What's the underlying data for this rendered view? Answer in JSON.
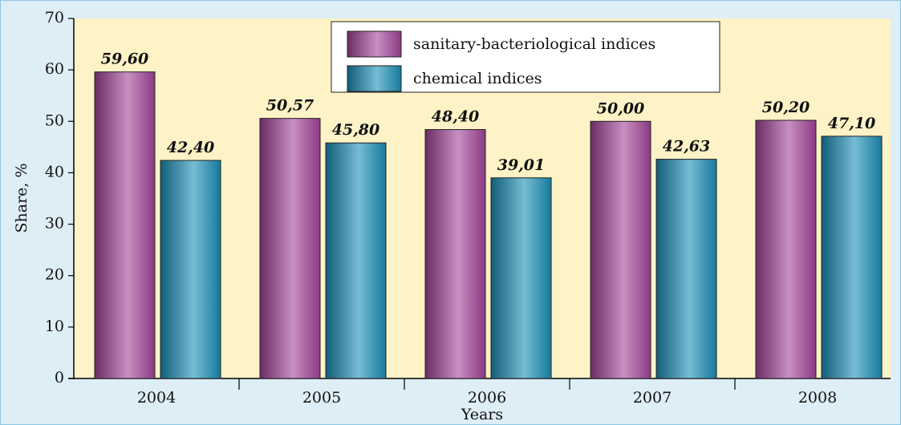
{
  "chart_data": {
    "type": "bar",
    "x_label": "Years",
    "y_label": "Share, %",
    "categories": [
      "2004",
      "2005",
      "2006",
      "2007",
      "2008"
    ],
    "series": [
      {
        "name": "sanitary-bacteriological indices",
        "color": "#a4449a",
        "values": [
          59.6,
          50.57,
          48.4,
          50.0,
          50.2
        ],
        "value_labels": [
          "59,60",
          "50,57",
          "48,40",
          "50,00",
          "50,20"
        ]
      },
      {
        "name": "chemical indices",
        "color": "#1a8fb8",
        "values": [
          42.4,
          45.8,
          39.01,
          42.63,
          47.1
        ],
        "value_labels": [
          "42,40",
          "45,80",
          "39,01",
          "42,63",
          "47,10"
        ]
      }
    ],
    "ylim": [
      0,
      70
    ],
    "yticks": [
      0,
      10,
      20,
      30,
      40,
      50,
      60,
      70
    ],
    "grid": false,
    "legend": "top"
  }
}
